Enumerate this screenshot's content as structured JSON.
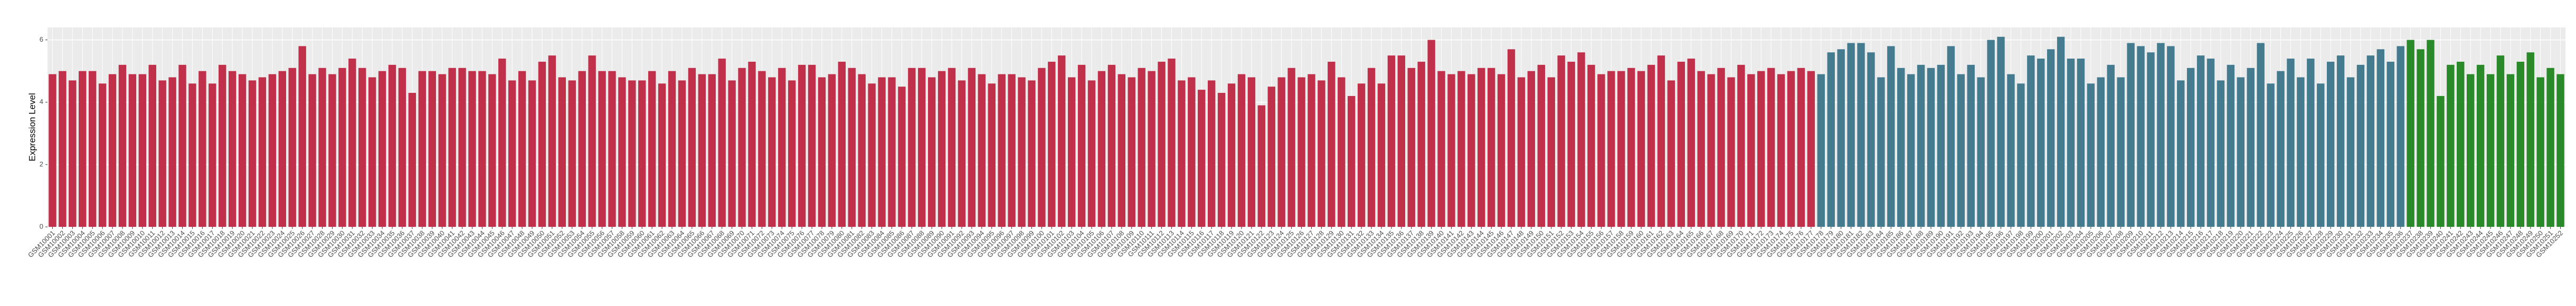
{
  "chart_data": {
    "type": "bar",
    "ylabel": "Expression Level",
    "categories": [
      "GSM10001",
      "GSM10002",
      "GSM10003",
      "GSM10004",
      "GSM10005",
      "GSM10006",
      "GSM10007",
      "GSM10008",
      "GSM10009",
      "GSM10010",
      "GSM10011",
      "GSM10012",
      "GSM10013",
      "GSM10014",
      "GSM10015",
      "GSM10016",
      "GSM10017",
      "GSM10018",
      "GSM10019",
      "GSM10020",
      "GSM10021",
      "GSM10022",
      "GSM10023",
      "GSM10024",
      "GSM10025",
      "GSM10026",
      "GSM10027",
      "GSM10028",
      "GSM10029",
      "GSM10030",
      "GSM10031",
      "GSM10032",
      "GSM10033",
      "GSM10034",
      "GSM10035",
      "GSM10036",
      "GSM10037",
      "GSM10038",
      "GSM10039",
      "GSM10040",
      "GSM10041",
      "GSM10042",
      "GSM10043",
      "GSM10044",
      "GSM10045",
      "GSM10046",
      "GSM10047",
      "GSM10048",
      "GSM10049",
      "GSM10050",
      "GSM10051",
      "GSM10052",
      "GSM10053",
      "GSM10054",
      "GSM10055",
      "GSM10056",
      "GSM10057",
      "GSM10058",
      "GSM10059",
      "GSM10060",
      "GSM10061",
      "GSM10062",
      "GSM10063",
      "GSM10064",
      "GSM10065",
      "GSM10066",
      "GSM10067",
      "GSM10068",
      "GSM10069",
      "GSM10070",
      "GSM10071",
      "GSM10072",
      "GSM10073",
      "GSM10074",
      "GSM10075",
      "GSM10076",
      "GSM10077",
      "GSM10078",
      "GSM10079",
      "GSM10080",
      "GSM10081",
      "GSM10082",
      "GSM10083",
      "GSM10084",
      "GSM10085",
      "GSM10086",
      "GSM10087",
      "GSM10088",
      "GSM10089",
      "GSM10090",
      "GSM10091",
      "GSM10092",
      "GSM10093",
      "GSM10094",
      "GSM10095",
      "GSM10096",
      "GSM10097",
      "GSM10098",
      "GSM10099",
      "GSM10100",
      "GSM10101",
      "GSM10102",
      "GSM10103",
      "GSM10104",
      "GSM10105",
      "GSM10106",
      "GSM10107",
      "GSM10108",
      "GSM10109",
      "GSM10110",
      "GSM10111",
      "GSM10112",
      "GSM10113",
      "GSM10114",
      "GSM10115",
      "GSM10116",
      "GSM10117",
      "GSM10118",
      "GSM10119",
      "GSM10120",
      "GSM10121",
      "GSM10122",
      "GSM10123",
      "GSM10124",
      "GSM10125",
      "GSM10126",
      "GSM10127",
      "GSM10128",
      "GSM10129",
      "GSM10130",
      "GSM10131",
      "GSM10132",
      "GSM10133",
      "GSM10134",
      "GSM10135",
      "GSM10136",
      "GSM10137",
      "GSM10138",
      "GSM10139",
      "GSM10140",
      "GSM10141",
      "GSM10142",
      "GSM10143",
      "GSM10144",
      "GSM10145",
      "GSM10146",
      "GSM10147",
      "GSM10148",
      "GSM10149",
      "GSM10150",
      "GSM10151",
      "GSM10152",
      "GSM10153",
      "GSM10154",
      "GSM10155",
      "GSM10156",
      "GSM10157",
      "GSM10158",
      "GSM10159",
      "GSM10160",
      "GSM10161",
      "GSM10162",
      "GSM10163",
      "GSM10164",
      "GSM10165",
      "GSM10166",
      "GSM10167",
      "GSM10168",
      "GSM10169",
      "GSM10170",
      "GSM10171",
      "GSM10172",
      "GSM10173",
      "GSM10174",
      "GSM10175",
      "GSM10176",
      "GSM10177",
      "GSM10178",
      "GSM10179",
      "GSM10180",
      "GSM10181",
      "GSM10182",
      "GSM10183",
      "GSM10184",
      "GSM10185",
      "GSM10186",
      "GSM10187",
      "GSM10188",
      "GSM10189",
      "GSM10190",
      "GSM10191",
      "GSM10192",
      "GSM10193",
      "GSM10194",
      "GSM10195",
      "GSM10196",
      "GSM10197",
      "GSM10198",
      "GSM10199",
      "GSM10200",
      "GSM10201",
      "GSM10202",
      "GSM10203",
      "GSM10204",
      "GSM10205",
      "GSM10206",
      "GSM10207",
      "GSM10208",
      "GSM10209",
      "GSM10210",
      "GSM10211",
      "GSM10212",
      "GSM10213",
      "GSM10214",
      "GSM10215",
      "GSM10216",
      "GSM10217",
      "GSM10218",
      "GSM10219",
      "GSM10220",
      "GSM10221",
      "GSM10222",
      "GSM10223",
      "GSM10224",
      "GSM10225",
      "GSM10226",
      "GSM10227",
      "GSM10228",
      "GSM10229",
      "GSM10230",
      "GSM10231",
      "GSM10232",
      "GSM10233",
      "GSM10234",
      "GSM10235",
      "GSM10236",
      "GSM10237",
      "GSM10238",
      "GSM10239",
      "GSM10240",
      "GSM10241",
      "GSM10242",
      "GSM10243",
      "GSM10244",
      "GSM10245",
      "GSM10246",
      "GSM10247",
      "GSM10248",
      "GSM10249",
      "GSM10250",
      "GSM10251",
      "GSM10252"
    ],
    "values": [
      4.9,
      5.0,
      4.7,
      5.0,
      5.0,
      4.6,
      4.9,
      5.2,
      4.9,
      4.9,
      5.2,
      4.7,
      4.8,
      5.2,
      4.6,
      5.0,
      4.6,
      5.2,
      5.0,
      4.9,
      4.7,
      4.8,
      4.9,
      5.0,
      5.1,
      5.8,
      4.9,
      5.1,
      4.9,
      5.1,
      5.4,
      5.1,
      4.8,
      5.0,
      5.2,
      5.1,
      4.3,
      5.0,
      5.0,
      4.9,
      5.1,
      5.1,
      5.0,
      5.0,
      4.9,
      5.4,
      4.7,
      5.0,
      4.7,
      5.3,
      5.5,
      4.8,
      4.7,
      5.0,
      5.5,
      5.0,
      5.0,
      4.8,
      4.7,
      4.7,
      5.0,
      4.6,
      5.0,
      4.7,
      5.1,
      4.9,
      4.9,
      5.4,
      4.7,
      5.1,
      5.3,
      5.0,
      4.8,
      5.1,
      4.7,
      5.2,
      5.2,
      4.8,
      4.9,
      5.3,
      5.1,
      4.9,
      4.6,
      4.8,
      4.8,
      4.5,
      5.1,
      5.1,
      4.8,
      5.0,
      5.1,
      4.7,
      5.1,
      4.9,
      4.6,
      4.9,
      4.9,
      4.8,
      4.7,
      5.1,
      5.3,
      5.5,
      4.8,
      5.2,
      4.7,
      5.0,
      5.2,
      4.9,
      4.8,
      5.1,
      5.0,
      5.3,
      5.4,
      4.7,
      4.8,
      4.4,
      4.7,
      4.3,
      4.6,
      4.9,
      4.8,
      3.9,
      4.5,
      4.8,
      5.1,
      4.8,
      4.9,
      4.7,
      5.3,
      4.8,
      4.2,
      4.6,
      5.1,
      4.6,
      5.5,
      5.5,
      5.1,
      5.3,
      6.0,
      5.0,
      4.9,
      5.0,
      4.9,
      5.1,
      5.1,
      4.9,
      5.7,
      4.8,
      5.0,
      5.2,
      4.8,
      5.5,
      5.3,
      5.6,
      5.2,
      4.9,
      5.0,
      5.0,
      5.1,
      5.0,
      5.2,
      5.5,
      4.7,
      5.3,
      5.4,
      5.0,
      4.9,
      5.1,
      4.8,
      5.2,
      4.9,
      5.0,
      5.1,
      4.9,
      5.0,
      5.1,
      5.0,
      4.9,
      5.6,
      5.7,
      5.9,
      5.9,
      5.6,
      4.8,
      5.8,
      5.1,
      4.9,
      5.2,
      5.1,
      5.2,
      5.8,
      4.9,
      5.2,
      4.8,
      6.0,
      6.1,
      4.9,
      4.6,
      5.5,
      5.4,
      5.7,
      6.1,
      5.4,
      5.4,
      4.6,
      4.8,
      5.2,
      4.8,
      5.9,
      5.8,
      5.6,
      5.9,
      5.8,
      4.7,
      5.1,
      5.5,
      5.4,
      4.7,
      5.2,
      4.8,
      5.1,
      5.9,
      4.6,
      5.0,
      5.4,
      4.8,
      5.4,
      4.6,
      5.3,
      5.5,
      4.8,
      5.2,
      5.5,
      5.7,
      5.3,
      5.8,
      6.0,
      5.7,
      6.0,
      4.2,
      5.2,
      5.3,
      4.9,
      5.2,
      4.9,
      5.5,
      4.9,
      5.3,
      5.6,
      4.8,
      5.1,
      4.9
    ],
    "colors": [
      "#c0304a",
      "#c0304a",
      "#c0304a",
      "#c0304a",
      "#c0304a",
      "#c0304a",
      "#c0304a",
      "#c0304a",
      "#c0304a",
      "#c0304a",
      "#c0304a",
      "#c0304a",
      "#c0304a",
      "#c0304a",
      "#c0304a",
      "#c0304a",
      "#c0304a",
      "#c0304a",
      "#c0304a",
      "#c0304a",
      "#c0304a",
      "#c0304a",
      "#c0304a",
      "#c0304a",
      "#c0304a",
      "#c0304a",
      "#c0304a",
      "#c0304a",
      "#c0304a",
      "#c0304a",
      "#c0304a",
      "#c0304a",
      "#c0304a",
      "#c0304a",
      "#c0304a",
      "#c0304a",
      "#c0304a",
      "#c0304a",
      "#c0304a",
      "#c0304a",
      "#c0304a",
      "#c0304a",
      "#c0304a",
      "#c0304a",
      "#c0304a",
      "#c0304a",
      "#c0304a",
      "#c0304a",
      "#c0304a",
      "#c0304a",
      "#c0304a",
      "#c0304a",
      "#c0304a",
      "#c0304a",
      "#c0304a",
      "#c0304a",
      "#c0304a",
      "#c0304a",
      "#c0304a",
      "#c0304a",
      "#c0304a",
      "#c0304a",
      "#c0304a",
      "#c0304a",
      "#c0304a",
      "#c0304a",
      "#c0304a",
      "#c0304a",
      "#c0304a",
      "#c0304a",
      "#c0304a",
      "#c0304a",
      "#c0304a",
      "#c0304a",
      "#c0304a",
      "#c0304a",
      "#c0304a",
      "#c0304a",
      "#c0304a",
      "#c0304a",
      "#c0304a",
      "#c0304a",
      "#c0304a",
      "#c0304a",
      "#c0304a",
      "#c0304a",
      "#c0304a",
      "#c0304a",
      "#c0304a",
      "#c0304a",
      "#c0304a",
      "#c0304a",
      "#c0304a",
      "#c0304a",
      "#c0304a",
      "#c0304a",
      "#c0304a",
      "#c0304a",
      "#c0304a",
      "#c0304a",
      "#c0304a",
      "#c0304a",
      "#c0304a",
      "#c0304a",
      "#c0304a",
      "#c0304a",
      "#c0304a",
      "#c0304a",
      "#c0304a",
      "#c0304a",
      "#c0304a",
      "#c0304a",
      "#c0304a",
      "#c0304a",
      "#c0304a",
      "#c0304a",
      "#c0304a",
      "#c0304a",
      "#c0304a",
      "#c0304a",
      "#c0304a",
      "#c0304a",
      "#c0304a",
      "#c0304a",
      "#c0304a",
      "#c0304a",
      "#c0304a",
      "#c0304a",
      "#c0304a",
      "#c0304a",
      "#c0304a",
      "#c0304a",
      "#c0304a",
      "#c0304a",
      "#c0304a",
      "#c0304a",
      "#c0304a",
      "#c0304a",
      "#c0304a",
      "#c0304a",
      "#c0304a",
      "#c0304a",
      "#c0304a",
      "#c0304a",
      "#c0304a",
      "#c0304a",
      "#c0304a",
      "#c0304a",
      "#c0304a",
      "#c0304a",
      "#c0304a",
      "#c0304a",
      "#c0304a",
      "#c0304a",
      "#c0304a",
      "#c0304a",
      "#c0304a",
      "#c0304a",
      "#c0304a",
      "#c0304a",
      "#c0304a",
      "#c0304a",
      "#c0304a",
      "#c0304a",
      "#c0304a",
      "#c0304a",
      "#c0304a",
      "#c0304a",
      "#c0304a",
      "#c0304a",
      "#c0304a",
      "#c0304a",
      "#c0304a",
      "#c0304a",
      "#c0304a",
      "#c0304a",
      "#c0304a",
      "#457b8f",
      "#457b8f",
      "#457b8f",
      "#457b8f",
      "#457b8f",
      "#457b8f",
      "#457b8f",
      "#457b8f",
      "#457b8f",
      "#457b8f",
      "#457b8f",
      "#457b8f",
      "#457b8f",
      "#457b8f",
      "#457b8f",
      "#457b8f",
      "#457b8f",
      "#457b8f",
      "#457b8f",
      "#457b8f",
      "#457b8f",
      "#457b8f",
      "#457b8f",
      "#457b8f",
      "#457b8f",
      "#457b8f",
      "#457b8f",
      "#457b8f",
      "#457b8f",
      "#457b8f",
      "#457b8f",
      "#457b8f",
      "#457b8f",
      "#457b8f",
      "#457b8f",
      "#457b8f",
      "#457b8f",
      "#457b8f",
      "#457b8f",
      "#457b8f",
      "#457b8f",
      "#457b8f",
      "#457b8f",
      "#457b8f",
      "#457b8f",
      "#457b8f",
      "#457b8f",
      "#457b8f",
      "#457b8f",
      "#457b8f",
      "#457b8f",
      "#457b8f",
      "#457b8f",
      "#457b8f",
      "#457b8f",
      "#457b8f",
      "#457b8f",
      "#457b8f",
      "#457b8f",
      "#2a8a2a",
      "#2a8a2a",
      "#2a8a2a",
      "#2a8a2a",
      "#2a8a2a",
      "#2a8a2a",
      "#2a8a2a",
      "#2a8a2a",
      "#2a8a2a",
      "#2a8a2a",
      "#2a8a2a",
      "#2a8a2a",
      "#2a8a2a",
      "#2a8a2a",
      "#2a8a2a",
      "#2a8a2a"
    ],
    "ylim": [
      0,
      6.4
    ],
    "yticks": [
      0,
      2,
      4,
      6
    ],
    "grid": true
  }
}
